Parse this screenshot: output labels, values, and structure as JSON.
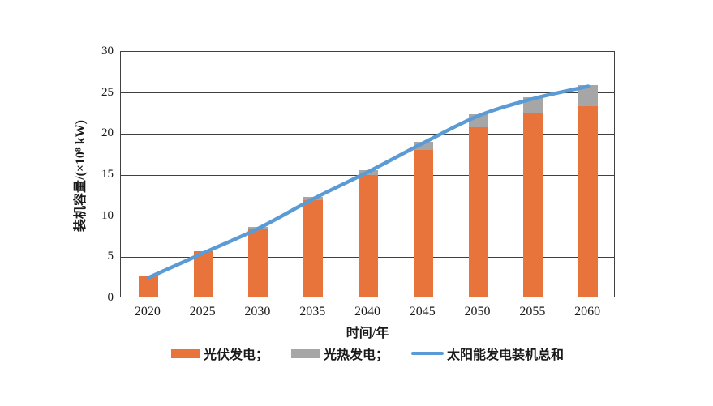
{
  "chart_data": {
    "type": "bar",
    "subtype": "stacked-bar-with-line",
    "title": "",
    "categories": [
      "2020",
      "2025",
      "2030",
      "2035",
      "2040",
      "2045",
      "2050",
      "2055",
      "2060"
    ],
    "series": [
      {
        "name": "光伏发电",
        "kind": "bar",
        "color": "#E8743C",
        "values": [
          2.5,
          5.5,
          8.3,
          11.7,
          14.8,
          17.9,
          20.6,
          22.3,
          23.2
        ]
      },
      {
        "name": "光热发电",
        "kind": "bar",
        "color": "#A6A6A6",
        "values": [
          0,
          0,
          0.2,
          0.4,
          0.6,
          1.0,
          1.6,
          2.0,
          2.6
        ]
      },
      {
        "name": "太阳能发电装机总和",
        "kind": "line",
        "color": "#5B9BD5",
        "values": [
          2.5,
          5.5,
          8.5,
          12.1,
          15.4,
          18.9,
          22.2,
          24.3,
          25.8
        ]
      }
    ],
    "xlabel": "时间/年",
    "ylabel": "装机容量/(×10⁸ kW)",
    "ylim": [
      0,
      30
    ],
    "yticks": [
      0,
      5,
      10,
      15,
      20,
      25,
      30
    ],
    "grid": true,
    "legend_position": "bottom-center"
  },
  "legend": {
    "items": [
      {
        "label": "光伏发电；",
        "swatch": "bar",
        "color": "#E8743C"
      },
      {
        "label": "光热发电；",
        "swatch": "bar",
        "color": "#A6A6A6"
      },
      {
        "label": "太阳能发电装机总和",
        "swatch": "line",
        "color": "#5B9BD5"
      }
    ]
  },
  "axis_color": "#404040"
}
